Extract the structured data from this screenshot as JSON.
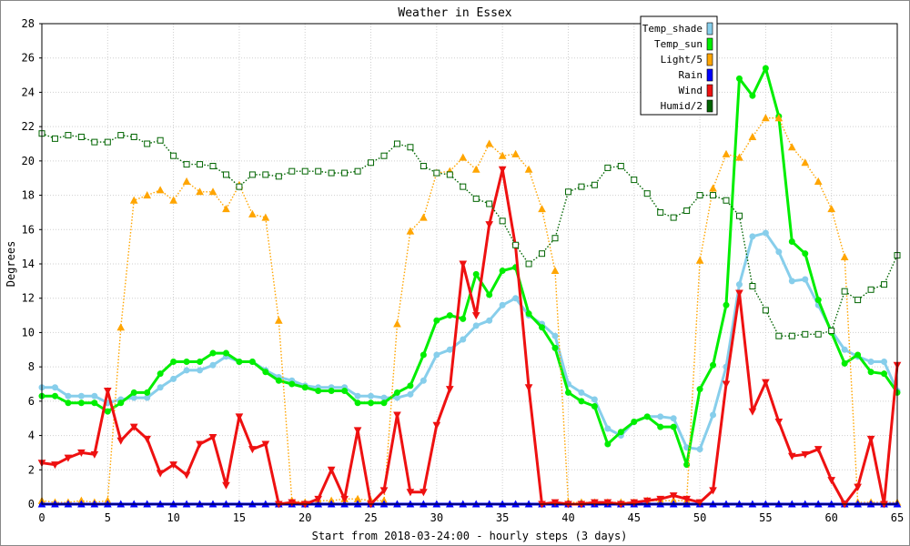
{
  "chart_data": {
    "type": "line",
    "title": "Weather in Essex",
    "xlabel": "Start from 2018-03-24:00 - hourly steps (3 days)",
    "ylabel": "Degrees",
    "xlim": [
      0,
      65
    ],
    "ylim": [
      0,
      28
    ],
    "xticks": [
      0,
      5,
      10,
      15,
      20,
      25,
      30,
      35,
      40,
      45,
      50,
      55,
      60,
      65
    ],
    "yticks": [
      0,
      2,
      4,
      6,
      8,
      10,
      12,
      14,
      16,
      18,
      20,
      22,
      24,
      26,
      28
    ],
    "grid": true,
    "legend_position": "top-right",
    "x": [
      0,
      1,
      2,
      3,
      4,
      5,
      6,
      7,
      8,
      9,
      10,
      11,
      12,
      13,
      14,
      15,
      16,
      17,
      18,
      19,
      20,
      21,
      22,
      23,
      24,
      25,
      26,
      27,
      28,
      29,
      30,
      31,
      32,
      33,
      34,
      35,
      36,
      37,
      38,
      39,
      40,
      41,
      42,
      43,
      44,
      45,
      46,
      47,
      48,
      49,
      50,
      51,
      52,
      53,
      54,
      55,
      56,
      57,
      58,
      59,
      60,
      61,
      62,
      63,
      64,
      65
    ],
    "series": [
      {
        "name": "Temp_shade",
        "color": "#87ceeb",
        "style": "solid",
        "marker": "circle",
        "values": [
          6.8,
          6.8,
          6.3,
          6.3,
          6.3,
          5.9,
          6.1,
          6.2,
          6.2,
          6.8,
          7.3,
          7.8,
          7.8,
          8.1,
          8.6,
          8.3,
          8.3,
          7.8,
          7.4,
          7.2,
          6.9,
          6.8,
          6.8,
          6.8,
          6.3,
          6.3,
          6.2,
          6.2,
          6.4,
          7.2,
          8.7,
          9.0,
          9.6,
          10.4,
          10.7,
          11.6,
          12.0,
          11.0,
          10.5,
          9.8,
          7.0,
          6.5,
          6.1,
          4.4,
          4.0,
          4.8,
          5.1,
          5.1,
          5.0,
          3.3,
          3.2,
          5.2,
          8.0,
          12.8,
          15.6,
          15.8,
          14.7,
          13.0,
          13.1,
          11.6,
          10.1,
          9.0,
          8.6,
          8.3,
          8.3,
          6.6
        ]
      },
      {
        "name": "Temp_sun",
        "color": "#00ee00",
        "style": "solid",
        "marker": "circle",
        "values": [
          6.3,
          6.3,
          5.9,
          5.9,
          5.9,
          5.4,
          5.9,
          6.5,
          6.5,
          7.6,
          8.3,
          8.3,
          8.3,
          8.8,
          8.8,
          8.3,
          8.3,
          7.7,
          7.2,
          7.0,
          6.8,
          6.6,
          6.6,
          6.6,
          5.9,
          5.9,
          5.9,
          6.5,
          6.9,
          8.7,
          10.7,
          11.0,
          10.8,
          13.4,
          12.2,
          13.6,
          13.8,
          11.1,
          10.3,
          9.1,
          6.5,
          6.0,
          5.7,
          3.5,
          4.2,
          4.8,
          5.1,
          4.5,
          4.5,
          2.3,
          6.7,
          8.1,
          11.6,
          24.8,
          23.8,
          25.4,
          22.6,
          15.3,
          14.6,
          11.9,
          10.0,
          8.2,
          8.7,
          7.7,
          7.6,
          6.5
        ]
      },
      {
        "name": "Light/5",
        "color": "#ffa500",
        "style": "dotted",
        "marker": "triangle-up",
        "values": [
          0.2,
          0.1,
          0.1,
          0.2,
          0.1,
          0.2,
          10.3,
          17.7,
          18.0,
          18.3,
          17.7,
          18.8,
          18.2,
          18.2,
          17.2,
          18.6,
          16.9,
          16.7,
          10.7,
          0.2,
          0.1,
          0.2,
          0.2,
          0.3,
          0.3,
          0.2,
          0.2,
          10.5,
          15.9,
          16.7,
          19.3,
          19.4,
          20.2,
          19.5,
          21.0,
          20.3,
          20.4,
          19.5,
          17.2,
          13.6,
          0.1,
          0.1,
          0.1,
          0.1,
          0.1,
          0.1,
          0.2,
          0.2,
          0.2,
          0.2,
          14.2,
          18.4,
          20.4,
          20.2,
          21.4,
          22.5,
          22.5,
          20.8,
          19.9,
          18.8,
          17.2,
          14.4,
          0.1,
          0.1,
          0.1,
          0.1
        ]
      },
      {
        "name": "Rain",
        "color": "#0000ff",
        "style": "solid",
        "marker": "triangle-up",
        "values": [
          0,
          0,
          0,
          0,
          0,
          0,
          0,
          0,
          0,
          0,
          0,
          0,
          0,
          0,
          0,
          0,
          0,
          0,
          0,
          0,
          0,
          0,
          0,
          0,
          0,
          0,
          0,
          0,
          0,
          0,
          0,
          0,
          0,
          0,
          0,
          0,
          0,
          0,
          0,
          0,
          0,
          0,
          0,
          0,
          0,
          0,
          0,
          0,
          0,
          0,
          0,
          0,
          0,
          0,
          0,
          0,
          0,
          0,
          0,
          0,
          0,
          0,
          0,
          0,
          0,
          0
        ]
      },
      {
        "name": "Wind",
        "color": "#ee1111",
        "style": "solid",
        "marker": "triangle-down",
        "values": [
          2.4,
          2.3,
          2.7,
          3.0,
          2.9,
          6.6,
          3.7,
          4.5,
          3.8,
          1.8,
          2.3,
          1.7,
          3.5,
          3.9,
          1.1,
          5.1,
          3.2,
          3.5,
          0.0,
          0.1,
          0.0,
          0.3,
          2.0,
          0.3,
          4.3,
          0.0,
          0.8,
          5.2,
          0.7,
          0.7,
          4.6,
          6.7,
          14.0,
          11.0,
          16.3,
          19.5,
          15.0,
          6.8,
          0.0,
          0.1,
          0.0,
          0.0,
          0.1,
          0.1,
          0.0,
          0.1,
          0.2,
          0.3,
          0.5,
          0.3,
          0.1,
          0.8,
          7.0,
          12.3,
          5.4,
          7.1,
          4.8,
          2.8,
          2.9,
          3.2,
          1.4,
          0.0,
          1.0,
          3.8,
          0.0,
          8.1
        ]
      },
      {
        "name": "Humid/2",
        "color": "#006400",
        "style": "dotted",
        "marker": "square",
        "values": [
          21.6,
          21.3,
          21.5,
          21.4,
          21.1,
          21.1,
          21.5,
          21.4,
          21.0,
          21.2,
          20.3,
          19.8,
          19.8,
          19.7,
          19.2,
          18.5,
          19.2,
          19.2,
          19.1,
          19.4,
          19.4,
          19.4,
          19.3,
          19.3,
          19.4,
          19.9,
          20.3,
          21.0,
          20.8,
          19.7,
          19.3,
          19.2,
          18.5,
          17.8,
          17.5,
          16.5,
          15.1,
          14.0,
          14.6,
          15.5,
          18.2,
          18.5,
          18.6,
          19.6,
          19.7,
          18.9,
          18.1,
          17.0,
          16.7,
          17.1,
          18.0,
          18.0,
          17.7,
          16.8,
          12.7,
          11.3,
          9.8,
          9.8,
          9.9,
          9.9,
          10.1,
          12.4,
          11.9,
          12.5,
          12.8,
          14.5
        ]
      }
    ]
  }
}
